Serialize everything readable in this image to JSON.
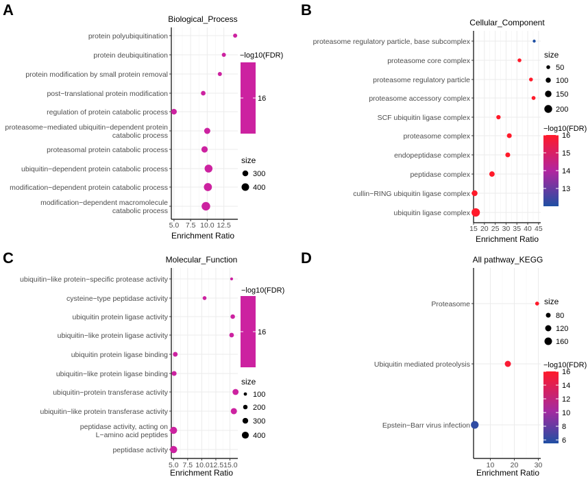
{
  "figure": {
    "panels": [
      {
        "letter": "A",
        "title": "Biological_Process",
        "xlabel": "Enrichment Ratio"
      },
      {
        "letter": "B",
        "title": "Cellular_Component",
        "xlabel": "Enrichment Ratio"
      },
      {
        "letter": "C",
        "title": "Molecular_Function",
        "xlabel": "Enrichment Ratio"
      },
      {
        "letter": "D",
        "title": "All pathway_KEGG",
        "xlabel": "Enrichment Ratio"
      }
    ]
  },
  "colors": {
    "low": "#1f4fa3",
    "mid": "#cc22a0",
    "high": "#ff1a2a"
  },
  "chart_data": [
    {
      "type": "scatter",
      "panel": "A",
      "title": "Biological_Process",
      "xlabel": "Enrichment Ratio",
      "xlim": [
        4.6,
        14.6
      ],
      "xticks": [
        5.0,
        7.5,
        10.0,
        12.5
      ],
      "xtick_labels": [
        "5.0",
        "7.5",
        "10.0",
        "12.5"
      ],
      "categories": [
        [
          "protein polyubiquitination"
        ],
        [
          "protein deubiquitination"
        ],
        [
          "protein modification by small protein removal"
        ],
        [
          "post−translational protein modification"
        ],
        [
          "regulation of protein catabolic process"
        ],
        [
          "proteasome−mediated ubiquitin−dependent protein",
          "catabolic process"
        ],
        [
          "proteasomal protein catabolic process"
        ],
        [
          "ubiquitin−dependent protein catabolic process"
        ],
        [
          "modification−dependent protein catabolic process"
        ],
        [
          "modification−dependent macromolecule",
          "catabolic process"
        ]
      ],
      "x": [
        14.2,
        12.5,
        11.9,
        9.4,
        5.0,
        10.0,
        9.6,
        10.2,
        10.1,
        9.8
      ],
      "size": [
        90,
        150,
        180,
        230,
        290,
        320,
        330,
        420,
        430,
        460
      ],
      "fdr": [
        16,
        16,
        16,
        16,
        16,
        16,
        16,
        16,
        16,
        16
      ],
      "size_legend": {
        "title": "size",
        "values": [
          300,
          400
        ],
        "labels": [
          "300",
          "400"
        ]
      },
      "color_legend": {
        "title": "−log10(FDR)",
        "range": [
          16,
          16
        ],
        "ticks": [
          16
        ],
        "tick_labels": [
          "16"
        ]
      }
    },
    {
      "type": "scatter",
      "panel": "B",
      "title": "Cellular_Component",
      "xlabel": "Enrichment Ratio",
      "xlim": [
        15,
        46
      ],
      "xticks": [
        15,
        20,
        25,
        30,
        35,
        40,
        45
      ],
      "xtick_labels": [
        "15",
        "20",
        "25",
        "30",
        "35",
        "40",
        "45"
      ],
      "categories": [
        [
          "proteasome regulatory particle, base subcomplex"
        ],
        [
          "proteasome core complex"
        ],
        [
          "proteasome regulatory particle"
        ],
        [
          "proteasome accessory complex"
        ],
        [
          "SCF ubiquitin ligase complex"
        ],
        [
          "proteasome complex"
        ],
        [
          "endopeptidase complex"
        ],
        [
          "peptidase complex"
        ],
        [
          "cullin−RING ubiquitin ligase complex"
        ],
        [
          "ubiquitin ligase complex"
        ]
      ],
      "x": [
        43.0,
        36.2,
        41.5,
        42.7,
        26.5,
        31.5,
        30.8,
        23.5,
        15.5,
        16.0
      ],
      "size": [
        20,
        50,
        50,
        55,
        70,
        90,
        90,
        110,
        125,
        220
      ],
      "fdr": [
        12,
        16,
        16,
        16,
        16,
        16,
        16,
        16,
        16,
        16
      ],
      "size_legend": {
        "title": "size",
        "values": [
          50,
          100,
          150,
          200
        ],
        "labels": [
          "50",
          "100",
          "150",
          "200"
        ]
      },
      "color_legend": {
        "title": "−log10(FDR)",
        "range": [
          12,
          16
        ],
        "ticks": [
          13,
          14,
          15,
          16
        ],
        "tick_labels": [
          "13",
          "14",
          "15",
          "16"
        ]
      }
    },
    {
      "type": "scatter",
      "panel": "C",
      "title": "Molecular_Function",
      "xlabel": "Enrichment Ratio",
      "xlim": [
        4.6,
        16.4
      ],
      "xticks": [
        5.0,
        7.5,
        10.0,
        12.5,
        15.0
      ],
      "xtick_labels": [
        "5.0",
        "7.5",
        "10.0",
        "12.5",
        "15.0"
      ],
      "xtick_combined_label": "10.012.515.0",
      "categories": [
        [
          "ubiquitin−like protein−specific protease activity"
        ],
        [
          "cysteine−type peptidase activity"
        ],
        [
          "ubiquitin protein ligase activity"
        ],
        [
          "ubiquitin−like protein ligase activity"
        ],
        [
          "ubiquitin protein ligase binding"
        ],
        [
          "ubiquitin−like protein ligase binding"
        ],
        [
          "ubiquitin−protein transferase activity"
        ],
        [
          "ubiquitin−like protein transferase activity"
        ],
        [
          "peptidase activity, acting on",
          "L−amino acid peptides"
        ],
        [
          "peptidase activity"
        ]
      ],
      "x": [
        15.3,
        10.5,
        15.5,
        15.3,
        5.3,
        5.1,
        16.0,
        15.7,
        5.0,
        5.0
      ],
      "size": [
        70,
        150,
        200,
        210,
        220,
        230,
        330,
        340,
        410,
        420
      ],
      "fdr": [
        16,
        16,
        16,
        16,
        16,
        16,
        16,
        16,
        16,
        16
      ],
      "size_legend": {
        "title": "size",
        "values": [
          100,
          200,
          300,
          400
        ],
        "labels": [
          "100",
          "200",
          "300",
          "400"
        ]
      },
      "color_legend": {
        "title": "−log10(FDR)",
        "range": [
          16,
          16
        ],
        "ticks": [
          16
        ],
        "tick_labels": [
          "16"
        ]
      }
    },
    {
      "type": "scatter",
      "panel": "D",
      "title": "All pathway_KEGG",
      "xlabel": "Enrichment Ratio",
      "xlim": [
        3,
        31
      ],
      "xticks": [
        10,
        20,
        30
      ],
      "xtick_labels": [
        "10",
        "20",
        "30"
      ],
      "categories": [
        [
          "Proteasome"
        ],
        [
          "Ubiquitin mediated proteolysis"
        ],
        [
          "Epstein−Barr virus infection"
        ]
      ],
      "x": [
        29.5,
        17.3,
        3.5
      ],
      "size": [
        55,
        120,
        165
      ],
      "fdr": [
        16,
        15.5,
        6
      ],
      "size_legend": {
        "title": "size",
        "values": [
          80,
          120,
          160
        ],
        "labels": [
          "80",
          "120",
          "160"
        ]
      },
      "color_legend": {
        "title": "−log10(FDR)",
        "range": [
          5.5,
          16
        ],
        "ticks": [
          6,
          8,
          10,
          12,
          14,
          16
        ],
        "tick_labels": [
          "6",
          "8",
          "10",
          "12",
          "14",
          "16"
        ]
      }
    }
  ]
}
